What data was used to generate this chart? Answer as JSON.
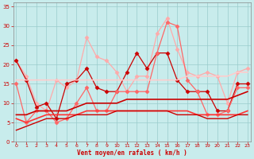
{
  "x": [
    0,
    1,
    2,
    3,
    4,
    5,
    6,
    7,
    8,
    9,
    10,
    11,
    12,
    13,
    14,
    15,
    16,
    17,
    18,
    19,
    20,
    21,
    22,
    23
  ],
  "series": [
    {
      "values": [
        21,
        17,
        10,
        8,
        16,
        14,
        16,
        27,
        22,
        21,
        18,
        13,
        17,
        17,
        28,
        32,
        24,
        18,
        17,
        18,
        17,
        10,
        18,
        19
      ],
      "color": "#ffaaaa",
      "lw": 0.9,
      "marker": "D",
      "ms": 2.5
    },
    {
      "values": [
        21,
        16,
        9,
        10,
        6,
        15,
        16,
        19,
        14,
        13,
        13,
        18,
        23,
        19,
        23,
        23,
        16,
        13,
        13,
        13,
        8,
        8,
        15,
        15
      ],
      "color": "#cc0000",
      "lw": 0.9,
      "marker": "D",
      "ms": 2.5
    },
    {
      "values": [
        15,
        5,
        8,
        8,
        5,
        6,
        10,
        14,
        8,
        8,
        13,
        13,
        13,
        13,
        23,
        31,
        30,
        16,
        13,
        7,
        7,
        8,
        14,
        14
      ],
      "color": "#ff6666",
      "lw": 0.9,
      "marker": "D",
      "ms": 2.5
    },
    {
      "values": [
        7,
        7,
        8,
        8,
        8,
        8,
        9,
        10,
        10,
        10,
        10,
        11,
        11,
        11,
        11,
        11,
        11,
        11,
        11,
        11,
        11,
        11,
        12,
        13
      ],
      "color": "#cc0000",
      "lw": 1.2,
      "marker": null,
      "ms": 0
    },
    {
      "values": [
        6,
        5,
        6,
        7,
        7,
        7,
        7,
        8,
        8,
        8,
        8,
        8,
        8,
        8,
        8,
        8,
        8,
        8,
        7,
        7,
        7,
        7,
        7,
        8
      ],
      "color": "#ff3333",
      "lw": 1.2,
      "marker": null,
      "ms": 0
    },
    {
      "values": [
        3,
        4,
        5,
        6,
        6,
        6,
        7,
        7,
        7,
        7,
        8,
        8,
        8,
        8,
        8,
        8,
        7,
        7,
        7,
        6,
        6,
        6,
        7,
        7
      ],
      "color": "#cc0000",
      "lw": 1.0,
      "marker": null,
      "ms": 0
    },
    {
      "values": [
        16,
        16,
        16,
        16,
        16,
        16,
        16,
        16,
        16,
        16,
        16,
        16,
        16,
        16,
        16,
        16,
        16,
        17,
        17,
        17,
        17,
        17,
        18,
        18
      ],
      "color": "#ffcccc",
      "lw": 1.2,
      "marker": null,
      "ms": 0
    }
  ],
  "xlabel": "Vent moyen/en rafales ( km/h )",
  "xlim": [
    -0.3,
    23.3
  ],
  "ylim": [
    0,
    36
  ],
  "yticks": [
    0,
    5,
    10,
    15,
    20,
    25,
    30,
    35
  ],
  "xticks": [
    0,
    1,
    2,
    3,
    4,
    5,
    6,
    7,
    8,
    9,
    10,
    11,
    12,
    13,
    14,
    15,
    16,
    17,
    18,
    19,
    20,
    21,
    22,
    23
  ],
  "bg_color": "#c8ecec",
  "grid_color": "#99cccc",
  "tick_color": "#cc0000",
  "xlabel_color": "#cc0000",
  "spine_color": "#888888"
}
